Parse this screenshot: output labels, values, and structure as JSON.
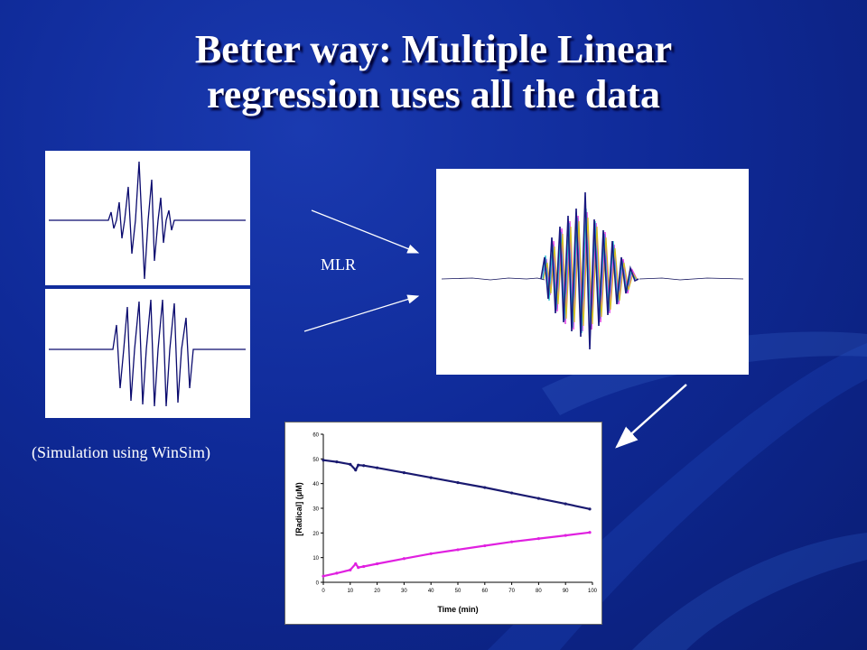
{
  "slide": {
    "title_line1": "Better way: Multiple Linear",
    "title_line2": "regression uses all the data",
    "mlr_label": "MLR",
    "simulation_caption": "(Simulation using WinSim)"
  },
  "colors": {
    "background": "#0f2a98",
    "spectrum_line": "#0a0a6e",
    "series_radical_1": "#1a1a70",
    "series_radical_2": "#e020e0"
  },
  "chart_data": {
    "type": "scatter",
    "title": "",
    "xlabel": "Time (min)",
    "ylabel": "[Radical] (μM)",
    "xlim": [
      0,
      100
    ],
    "ylim": [
      0,
      60
    ],
    "xticks": [
      0,
      10,
      20,
      30,
      40,
      50,
      60,
      70,
      80,
      90,
      100
    ],
    "yticks": [
      0,
      10,
      20,
      30,
      40,
      50,
      60
    ],
    "grid": false,
    "series": [
      {
        "x": [
          0,
          5,
          10,
          12,
          13,
          15,
          20,
          30,
          40,
          50,
          60,
          70,
          80,
          90,
          99
        ],
        "y": [
          49.5,
          48.8,
          47.8,
          45.5,
          47.5,
          47.3,
          46.4,
          44.4,
          42.4,
          40.4,
          38.4,
          36.2,
          34.0,
          31.8,
          29.7
        ]
      },
      {
        "x": [
          0,
          5,
          10,
          12,
          13,
          15,
          20,
          30,
          40,
          50,
          60,
          70,
          80,
          90,
          99
        ],
        "y": [
          2.5,
          3.7,
          5.0,
          7.5,
          6.0,
          6.4,
          7.5,
          9.6,
          11.6,
          13.2,
          14.8,
          16.4,
          17.7,
          19.0,
          20.2
        ]
      }
    ]
  }
}
